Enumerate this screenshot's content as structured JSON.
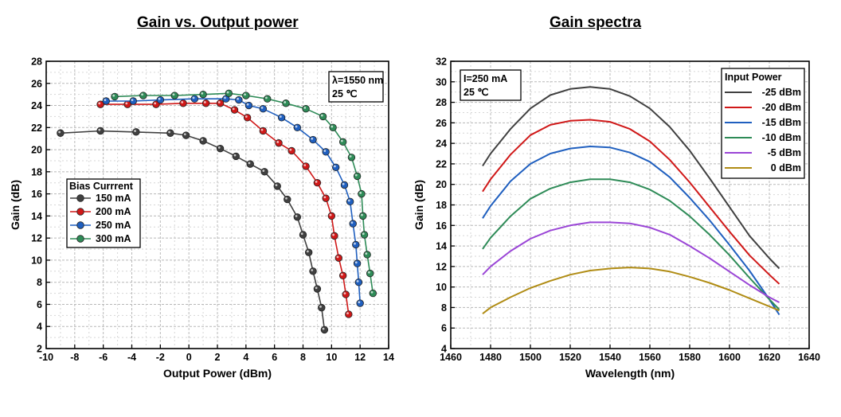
{
  "chart_data": [
    {
      "type": "scatter",
      "title": "Gain vs. Output power",
      "xlabel": "Output Power (dBm)",
      "ylabel": "Gain (dB)",
      "xlim": [
        -10,
        14
      ],
      "ylim": [
        2,
        28
      ],
      "xticks": [
        -10,
        -8,
        -6,
        -4,
        -2,
        0,
        2,
        4,
        6,
        8,
        10,
        12,
        14
      ],
      "yticks": [
        2,
        4,
        6,
        8,
        10,
        12,
        14,
        16,
        18,
        20,
        22,
        24,
        26,
        28
      ],
      "grid": true,
      "legend_title": "Bias Currrent",
      "legend_position": "middle-left",
      "annotation": [
        "λ=1550 nm",
        "25 ℃"
      ],
      "series": [
        {
          "name": "150 mA",
          "color": "#404040",
          "points": [
            [
              -9.0,
              21.5
            ],
            [
              -6.2,
              21.7
            ],
            [
              -3.7,
              21.6
            ],
            [
              -1.3,
              21.5
            ],
            [
              -0.2,
              21.3
            ],
            [
              1.0,
              20.8
            ],
            [
              2.2,
              20.1
            ],
            [
              3.3,
              19.4
            ],
            [
              4.3,
              18.7
            ],
            [
              5.3,
              18.0
            ],
            [
              6.2,
              16.7
            ],
            [
              6.9,
              15.5
            ],
            [
              7.6,
              13.9
            ],
            [
              8.0,
              12.3
            ],
            [
              8.4,
              10.7
            ],
            [
              8.7,
              9.0
            ],
            [
              9.0,
              7.4
            ],
            [
              9.3,
              5.7
            ],
            [
              9.5,
              3.7
            ]
          ]
        },
        {
          "name": "200 mA",
          "color": "#d01818",
          "points": [
            [
              -6.2,
              24.1
            ],
            [
              -4.3,
              24.1
            ],
            [
              -2.3,
              24.1
            ],
            [
              -0.4,
              24.2
            ],
            [
              1.2,
              24.2
            ],
            [
              2.2,
              24.2
            ],
            [
              3.2,
              23.6
            ],
            [
              4.1,
              22.9
            ],
            [
              5.2,
              21.7
            ],
            [
              6.3,
              20.6
            ],
            [
              7.2,
              19.9
            ],
            [
              8.2,
              18.5
            ],
            [
              9.0,
              17.0
            ],
            [
              9.6,
              15.6
            ],
            [
              10.0,
              14.0
            ],
            [
              10.2,
              12.2
            ],
            [
              10.5,
              10.2
            ],
            [
              10.8,
              8.6
            ],
            [
              11.0,
              6.9
            ],
            [
              11.2,
              5.1
            ]
          ]
        },
        {
          "name": "250 mA",
          "color": "#1f5fbf",
          "points": [
            [
              -5.8,
              24.4
            ],
            [
              -3.9,
              24.4
            ],
            [
              -2.0,
              24.5
            ],
            [
              0.4,
              24.6
            ],
            [
              2.6,
              24.6
            ],
            [
              3.5,
              24.5
            ],
            [
              4.2,
              24.0
            ],
            [
              5.2,
              23.7
            ],
            [
              6.5,
              22.9
            ],
            [
              7.6,
              22.0
            ],
            [
              8.7,
              20.9
            ],
            [
              9.6,
              19.8
            ],
            [
              10.3,
              18.4
            ],
            [
              10.9,
              16.8
            ],
            [
              11.3,
              15.3
            ],
            [
              11.5,
              13.3
            ],
            [
              11.7,
              11.4
            ],
            [
              11.8,
              9.7
            ],
            [
              11.9,
              8.0
            ],
            [
              12.0,
              6.1
            ]
          ]
        },
        {
          "name": "300 mA",
          "color": "#2e8b57",
          "points": [
            [
              -5.2,
              24.8
            ],
            [
              -3.2,
              24.9
            ],
            [
              -1.0,
              24.9
            ],
            [
              1.0,
              25.0
            ],
            [
              2.8,
              25.1
            ],
            [
              4.0,
              24.9
            ],
            [
              5.5,
              24.6
            ],
            [
              6.8,
              24.2
            ],
            [
              8.2,
              23.7
            ],
            [
              9.4,
              23.0
            ],
            [
              10.1,
              22.0
            ],
            [
              10.8,
              20.7
            ],
            [
              11.4,
              19.3
            ],
            [
              11.8,
              17.6
            ],
            [
              12.1,
              16.0
            ],
            [
              12.2,
              14.0
            ],
            [
              12.3,
              12.3
            ],
            [
              12.5,
              10.5
            ],
            [
              12.7,
              8.8
            ],
            [
              12.9,
              7.0
            ]
          ]
        }
      ]
    },
    {
      "type": "line",
      "title": "Gain spectra",
      "xlabel": "Wavelength (nm)",
      "ylabel": "Gain (dB)",
      "xlim": [
        1460,
        1640
      ],
      "ylim": [
        4,
        32
      ],
      "xticks": [
        1460,
        1480,
        1500,
        1520,
        1540,
        1560,
        1580,
        1600,
        1620,
        1640
      ],
      "yticks": [
        4,
        6,
        8,
        10,
        12,
        14,
        16,
        18,
        20,
        22,
        24,
        26,
        28,
        30,
        32
      ],
      "grid": true,
      "legend_title": "Input Power",
      "legend_position": "top-right",
      "annotation": [
        "I=250 mA",
        "25 ℃"
      ],
      "series": [
        {
          "name": "-25 dBm",
          "color": "#404040",
          "x": [
            1476,
            1480,
            1490,
            1500,
            1510,
            1520,
            1530,
            1540,
            1550,
            1560,
            1570,
            1580,
            1590,
            1600,
            1610,
            1620,
            1625
          ],
          "y": [
            21.8,
            23.0,
            25.4,
            27.4,
            28.7,
            29.3,
            29.5,
            29.3,
            28.6,
            27.4,
            25.6,
            23.3,
            20.6,
            17.8,
            15.0,
            12.8,
            11.8
          ]
        },
        {
          "name": "-20 dBm",
          "color": "#d01818",
          "x": [
            1476,
            1480,
            1490,
            1500,
            1510,
            1520,
            1530,
            1540,
            1550,
            1560,
            1570,
            1580,
            1590,
            1600,
            1610,
            1620,
            1625
          ],
          "y": [
            19.3,
            20.5,
            22.9,
            24.8,
            25.8,
            26.2,
            26.3,
            26.1,
            25.4,
            24.2,
            22.4,
            20.2,
            17.8,
            15.4,
            13.1,
            11.2,
            10.3
          ]
        },
        {
          "name": "-15 dBm",
          "color": "#1f5fbf",
          "x": [
            1476,
            1480,
            1490,
            1500,
            1510,
            1520,
            1530,
            1540,
            1550,
            1560,
            1570,
            1580,
            1590,
            1600,
            1610,
            1620,
            1625
          ],
          "y": [
            16.7,
            17.9,
            20.3,
            22.0,
            23.0,
            23.5,
            23.7,
            23.6,
            23.1,
            22.2,
            20.7,
            18.7,
            16.5,
            14.1,
            11.6,
            8.8,
            7.3
          ]
        },
        {
          "name": "-10 dBm",
          "color": "#2e8b57",
          "x": [
            1476,
            1480,
            1490,
            1500,
            1510,
            1520,
            1530,
            1540,
            1550,
            1560,
            1570,
            1580,
            1590,
            1600,
            1610,
            1620,
            1625
          ],
          "y": [
            13.7,
            14.8,
            16.9,
            18.6,
            19.6,
            20.2,
            20.5,
            20.5,
            20.2,
            19.5,
            18.4,
            16.9,
            15.1,
            13.1,
            10.9,
            8.8,
            7.8
          ]
        },
        {
          "name": "-5 dBm",
          "color": "#9a45d6",
          "x": [
            1476,
            1480,
            1490,
            1500,
            1510,
            1520,
            1530,
            1540,
            1550,
            1560,
            1570,
            1580,
            1590,
            1600,
            1610,
            1620,
            1625
          ],
          "y": [
            11.2,
            12.0,
            13.5,
            14.7,
            15.5,
            16.0,
            16.3,
            16.3,
            16.2,
            15.8,
            15.1,
            14.0,
            12.8,
            11.5,
            10.2,
            9.0,
            8.5
          ]
        },
        {
          "name": "0 dBm",
          "color": "#b08c14",
          "x": [
            1476,
            1480,
            1490,
            1500,
            1510,
            1520,
            1530,
            1540,
            1550,
            1560,
            1570,
            1580,
            1590,
            1600,
            1610,
            1620,
            1625
          ],
          "y": [
            7.4,
            8.0,
            9.0,
            9.9,
            10.6,
            11.2,
            11.6,
            11.8,
            11.9,
            11.8,
            11.5,
            11.0,
            10.4,
            9.7,
            8.9,
            8.1,
            7.7
          ]
        }
      ]
    }
  ]
}
